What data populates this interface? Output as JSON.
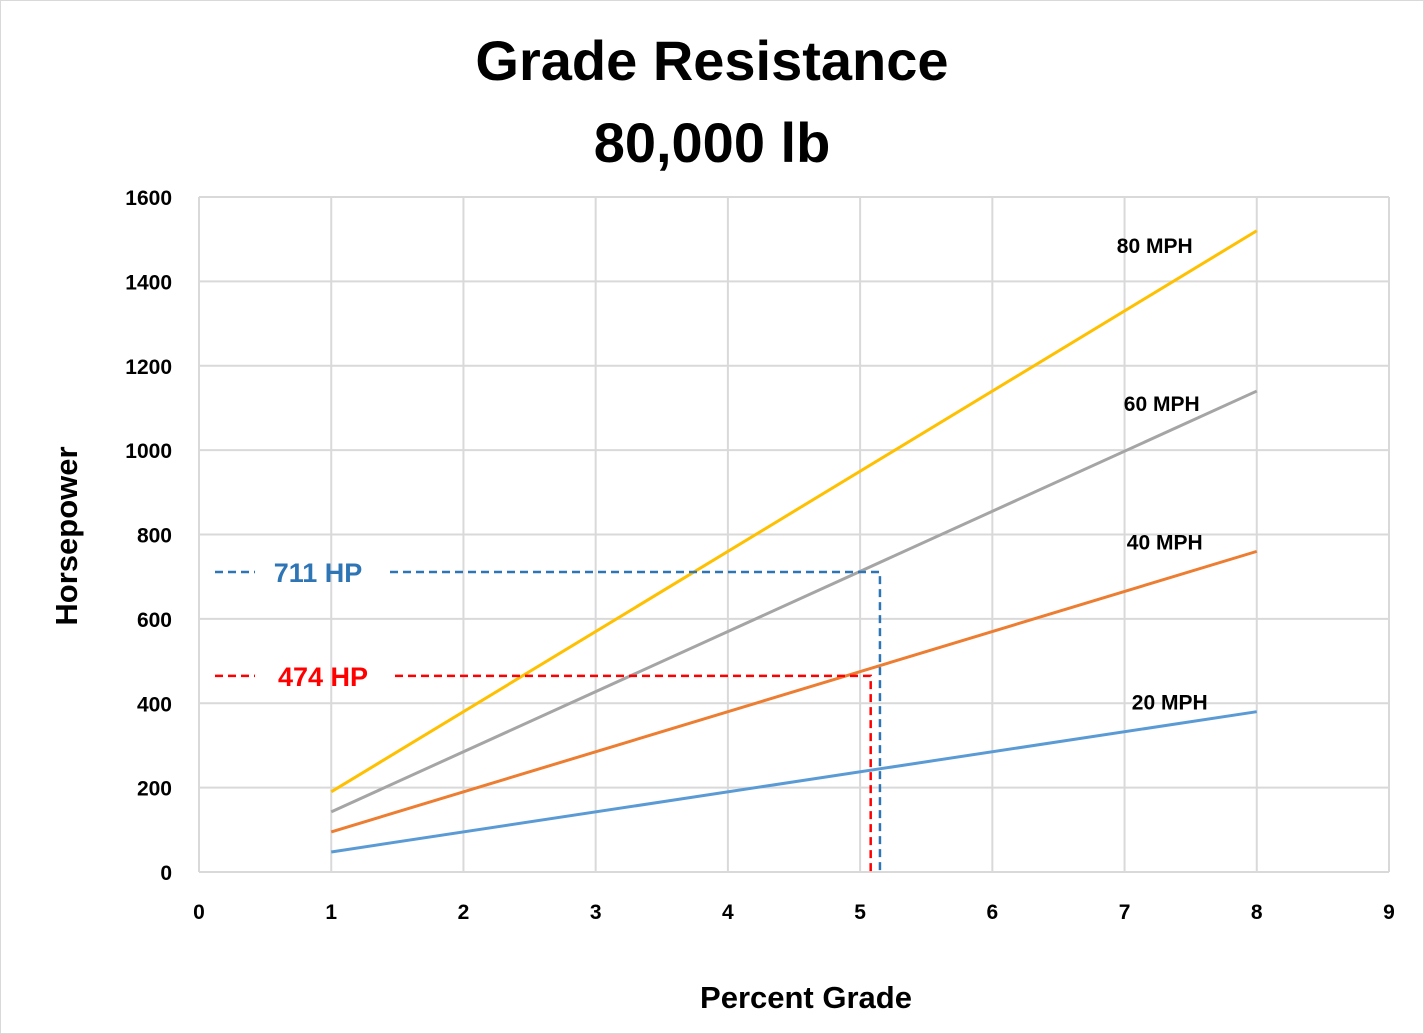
{
  "chart_data": {
    "type": "line",
    "title": "Grade Resistance",
    "subtitle": "80,000 lb",
    "xlabel": "Percent Grade",
    "ylabel": "Horsepower",
    "xlim": [
      0,
      9
    ],
    "ylim": [
      0,
      1600
    ],
    "xticks": [
      0,
      1,
      2,
      3,
      4,
      5,
      6,
      7,
      8,
      9
    ],
    "yticks": [
      0,
      200,
      400,
      600,
      800,
      1000,
      1200,
      1400,
      1600
    ],
    "grid": true,
    "legend": "none",
    "series": [
      {
        "name": "20 MPH",
        "color": "#5B9BD5",
        "x": [
          1,
          8
        ],
        "y": [
          47.5,
          380
        ]
      },
      {
        "name": "40 MPH",
        "color": "#ED7D31",
        "x": [
          1,
          8
        ],
        "y": [
          95,
          760
        ]
      },
      {
        "name": "60 MPH",
        "color": "#A5A5A5",
        "x": [
          1,
          8
        ],
        "y": [
          142.5,
          1140
        ]
      },
      {
        "name": "80 MPH",
        "color": "#FFC000",
        "x": [
          1,
          8
        ],
        "y": [
          190,
          1520
        ]
      }
    ],
    "annotations": [
      {
        "text": "711 HP",
        "color": "#2E75B6",
        "y": 711,
        "x": 5.15
      },
      {
        "text": "474 HP",
        "color": "#FF0000",
        "y": 465,
        "x": 5.08
      }
    ]
  }
}
